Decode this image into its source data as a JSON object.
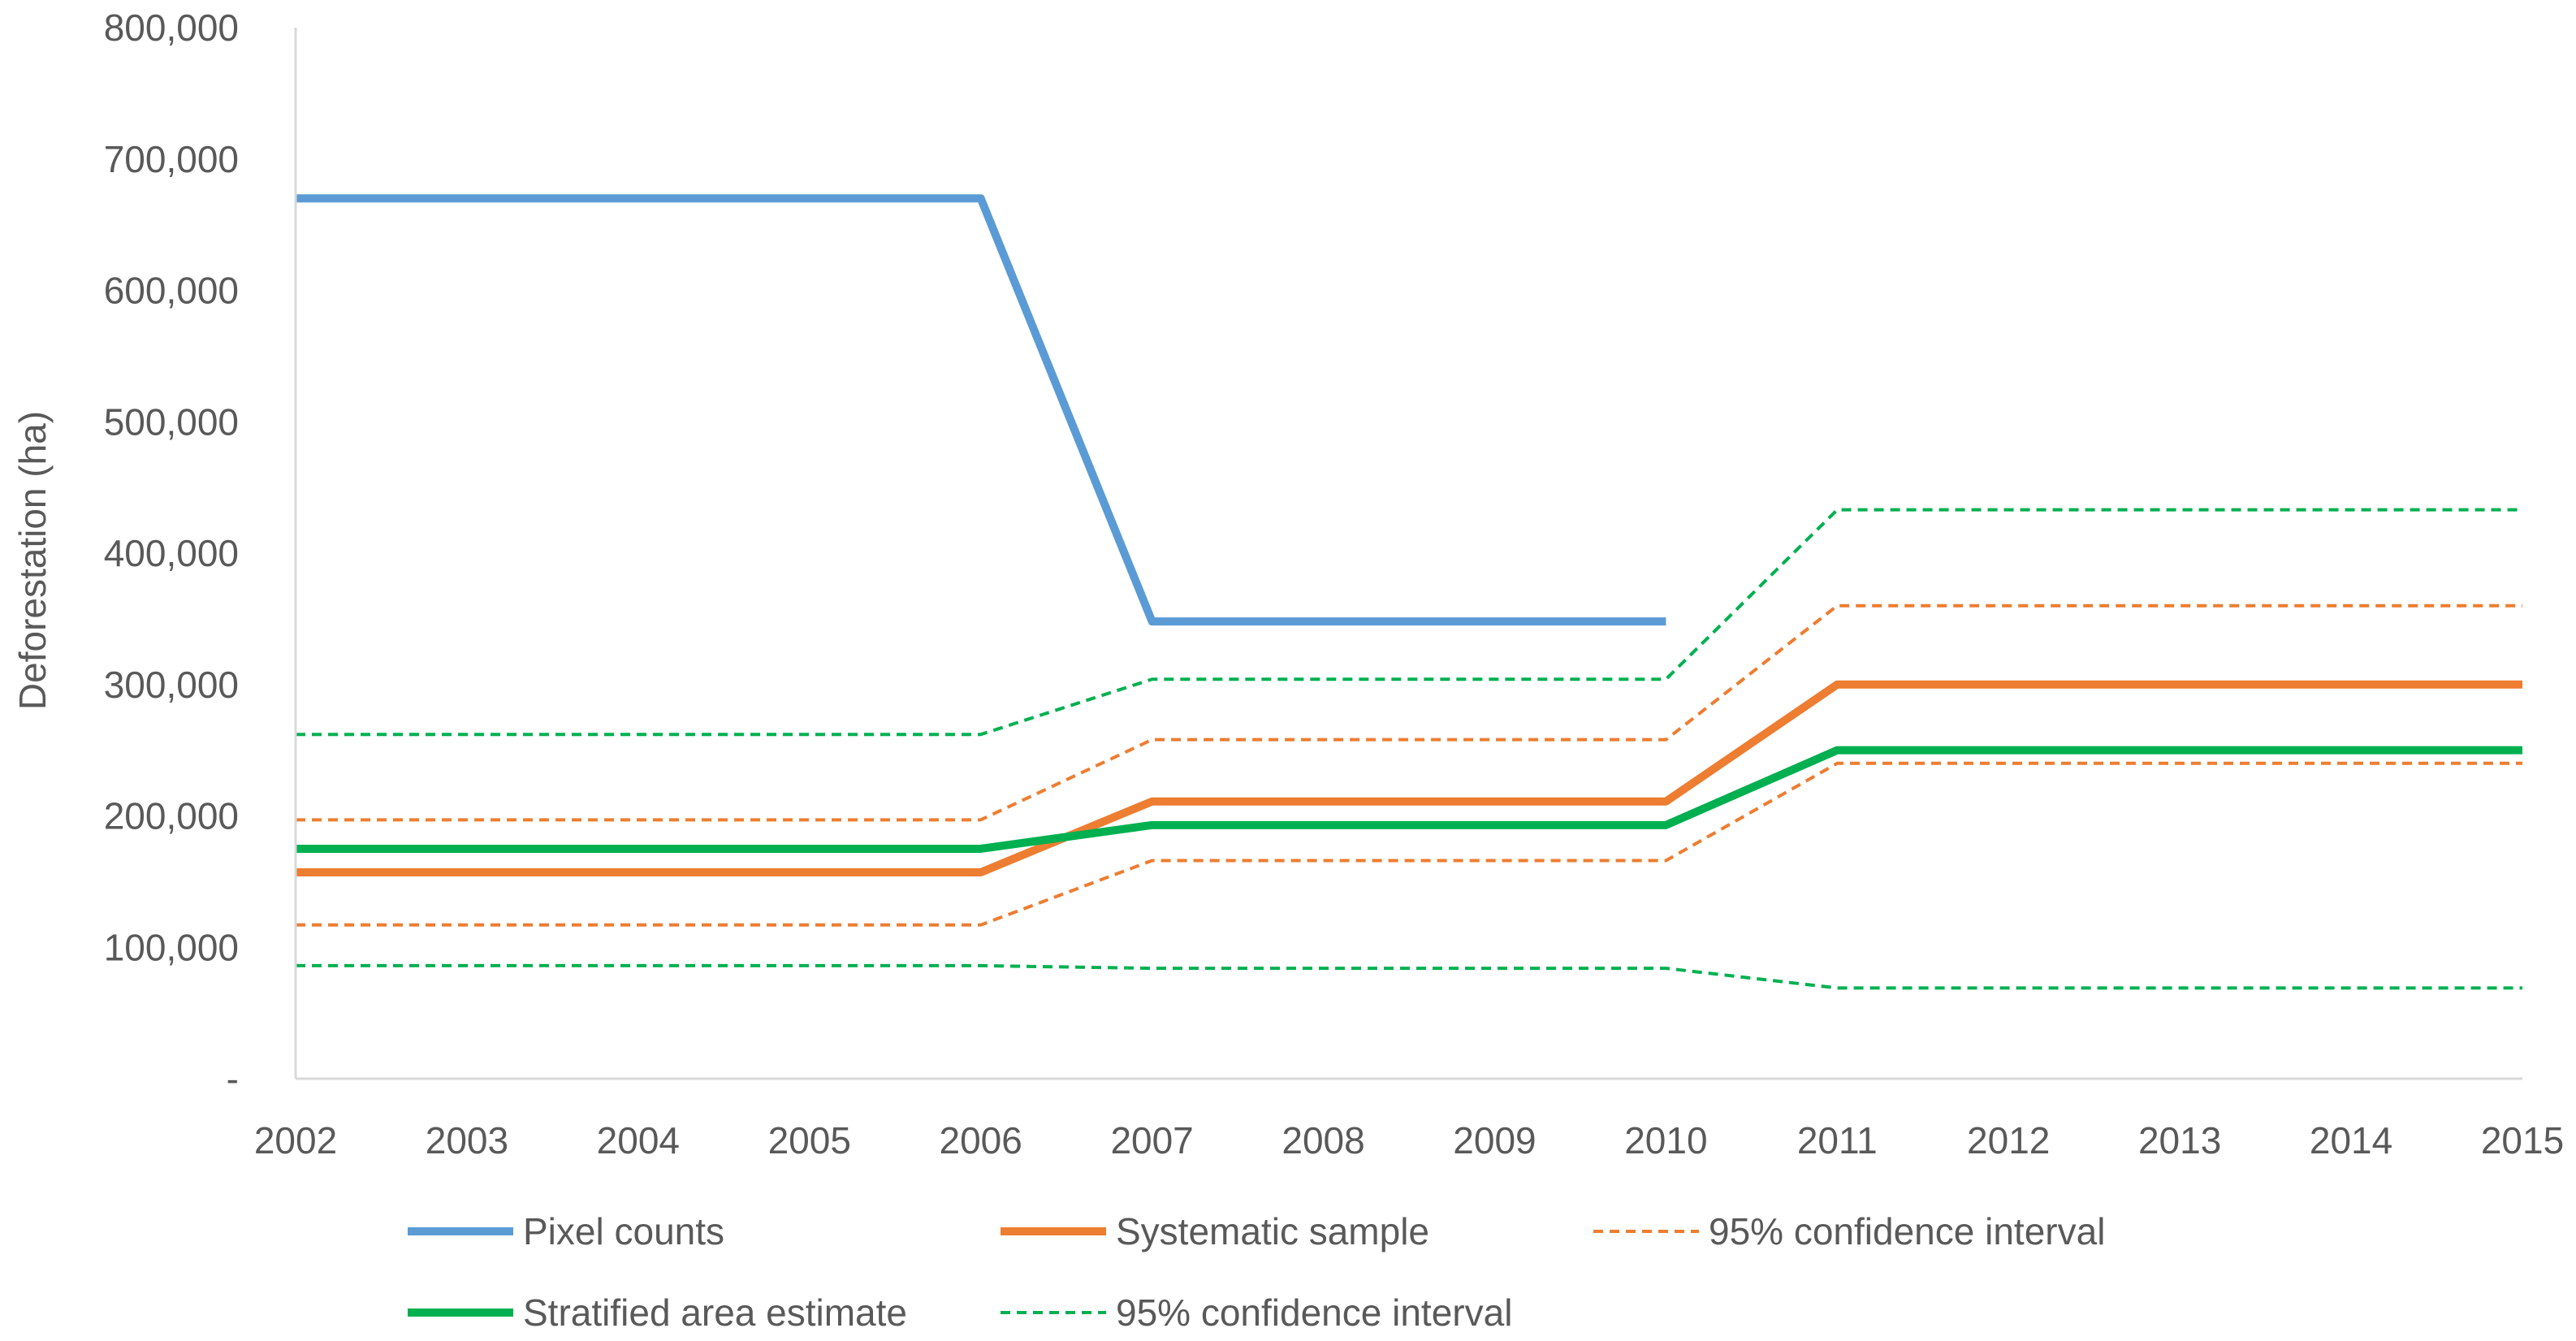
{
  "chart_data": {
    "type": "line",
    "title": "",
    "xlabel": "",
    "ylabel": "Deforestation (ha)",
    "x": [
      2002,
      2003,
      2004,
      2005,
      2006,
      2007,
      2008,
      2009,
      2010,
      2011,
      2012,
      2013,
      2014,
      2015
    ],
    "x_tick_labels": [
      "2002",
      "2003",
      "2004",
      "2005",
      "2006",
      "2007",
      "2008",
      "2009",
      "2010",
      "2011",
      "2012",
      "2013",
      "2014",
      "2015"
    ],
    "ylim": [
      0,
      800000
    ],
    "y_ticks": [
      0,
      100000,
      200000,
      300000,
      400000,
      500000,
      600000,
      700000,
      800000
    ],
    "y_tick_labels": [
      "-",
      "100,000",
      "200,000",
      "300,000",
      "400,000",
      "500,000",
      "600,000",
      "700,000",
      "800,000"
    ],
    "grid": false,
    "legend_position": "bottom",
    "series": [
      {
        "id": "pixel_counts",
        "name": "Pixel counts",
        "color": "#5B9BD5",
        "style": "solid",
        "x": [
          2002,
          2006,
          2007,
          2010
        ],
        "values": [
          670000,
          670000,
          348000,
          348000
        ]
      },
      {
        "id": "systematic_sample",
        "name": "Systematic sample",
        "color": "#ED7D31",
        "style": "solid",
        "x": [
          2002,
          2006,
          2007,
          2010,
          2011,
          2015
        ],
        "values": [
          157000,
          157000,
          211000,
          211000,
          300000,
          300000
        ]
      },
      {
        "id": "systematic_ci_upper",
        "name": "95% confidence interval",
        "color": "#ED7D31",
        "style": "dashed",
        "x": [
          2002,
          2006,
          2007,
          2010,
          2011,
          2015
        ],
        "values": [
          197000,
          197000,
          258000,
          258000,
          360000,
          360000
        ]
      },
      {
        "id": "systematic_ci_lower",
        "name": "95% confidence interval",
        "color": "#ED7D31",
        "style": "dashed",
        "x": [
          2002,
          2006,
          2007,
          2010,
          2011,
          2015
        ],
        "values": [
          117000,
          117000,
          166000,
          166000,
          240000,
          240000
        ]
      },
      {
        "id": "stratified_estimate",
        "name": "Stratified area estimate",
        "color": "#00B050",
        "style": "solid",
        "x": [
          2002,
          2006,
          2007,
          2010,
          2011,
          2015
        ],
        "values": [
          175000,
          175000,
          193000,
          193000,
          250000,
          250000
        ]
      },
      {
        "id": "stratified_ci_upper",
        "name": "95% confidence interval",
        "color": "#00B050",
        "style": "dashed",
        "x": [
          2002,
          2006,
          2007,
          2010,
          2011,
          2015
        ],
        "values": [
          262000,
          262000,
          304000,
          304000,
          433000,
          433000
        ]
      },
      {
        "id": "stratified_ci_lower",
        "name": "95% confidence interval",
        "color": "#00B050",
        "style": "dashed",
        "x": [
          2002,
          2006,
          2007,
          2010,
          2011,
          2015
        ],
        "values": [
          86000,
          86000,
          84000,
          84000,
          69000,
          69000
        ]
      }
    ],
    "legend": [
      {
        "label": "Pixel counts",
        "color": "#5B9BD5",
        "style": "solid"
      },
      {
        "label": "Systematic sample",
        "color": "#ED7D31",
        "style": "solid"
      },
      {
        "label": "95% confidence interval",
        "color": "#ED7D31",
        "style": "dashed"
      },
      {
        "label": "Stratified area estimate",
        "color": "#00B050",
        "style": "solid"
      },
      {
        "label": "95% confidence interval",
        "color": "#00B050",
        "style": "dashed"
      }
    ],
    "axis_color": "#D9D9D9"
  }
}
